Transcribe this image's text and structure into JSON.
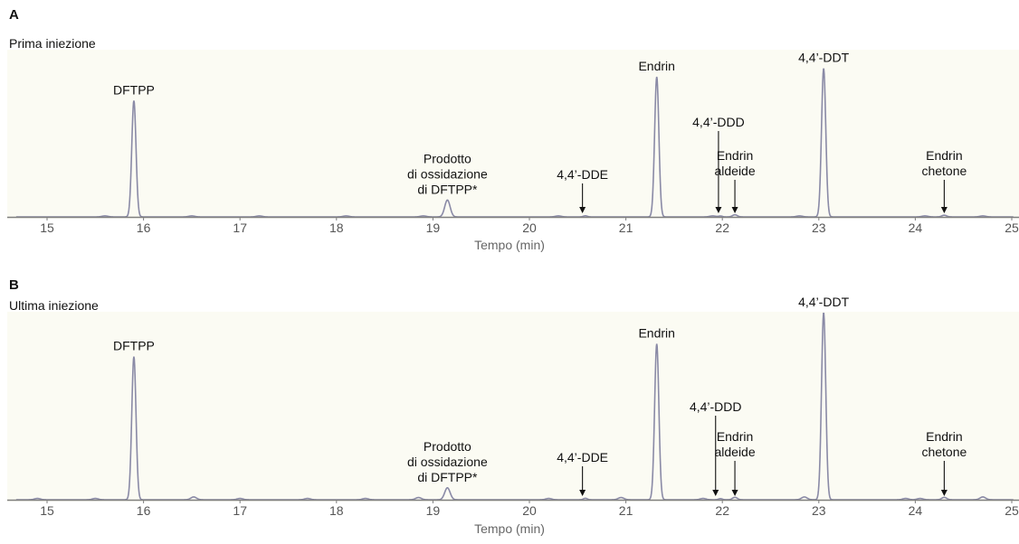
{
  "chart_data": [
    {
      "type": "line",
      "panel": "A",
      "subtitle": "Prima iniezione",
      "xlabel": "Tempo (min)",
      "xlim": [
        14.6,
        25.0
      ],
      "xticks": [
        15,
        16,
        17,
        18,
        19,
        20,
        21,
        22,
        23,
        24,
        25
      ],
      "ylim": [
        0,
        100
      ],
      "series": [
        {
          "peaks": [
            {
              "t": 15.9,
              "h": 83,
              "w": 0.022
            },
            {
              "t": 19.15,
              "h": 12,
              "w": 0.028
            },
            {
              "t": 20.58,
              "h": 0.8,
              "w": 0.02
            },
            {
              "t": 21.32,
              "h": 100,
              "w": 0.022
            },
            {
              "t": 21.98,
              "h": 0.6,
              "w": 0.02
            },
            {
              "t": 22.13,
              "h": 1.5,
              "w": 0.025
            },
            {
              "t": 23.05,
              "h": 106,
              "w": 0.022
            },
            {
              "t": 24.3,
              "h": 1.2,
              "w": 0.025
            }
          ],
          "noise": [
            15.6,
            16.5,
            17.2,
            18.1,
            18.9,
            20.3,
            21.9,
            22.8,
            24.1,
            24.7
          ]
        }
      ],
      "annotations": [
        {
          "lines": [
            "DFTPP"
          ],
          "t": 15.9,
          "arrow": false
        },
        {
          "lines": [
            "Prodotto",
            "di ossidazione",
            "di DFTPP*"
          ],
          "t": 19.15,
          "arrow": false
        },
        {
          "lines": [
            "4,4’-DDE"
          ],
          "t": 20.55,
          "arrow": true
        },
        {
          "lines": [
            "Endrin"
          ],
          "t": 21.32,
          "arrow": false
        },
        {
          "lines": [
            "4,4’-DDD"
          ],
          "t": 21.96,
          "arrow": true
        },
        {
          "lines": [
            "Endrin",
            "aldeide"
          ],
          "t": 22.13,
          "arrow": true
        },
        {
          "lines": [
            "4,4’-DDT"
          ],
          "t": 23.05,
          "arrow": false
        },
        {
          "lines": [
            "Endrin",
            "chetone"
          ],
          "t": 24.3,
          "arrow": true
        }
      ]
    },
    {
      "type": "line",
      "panel": "B",
      "subtitle": "Ultima iniezione",
      "xlabel": "Tempo (min)",
      "xlim": [
        14.6,
        25.0
      ],
      "xticks": [
        15,
        16,
        17,
        18,
        19,
        20,
        21,
        22,
        23,
        24,
        25
      ],
      "ylim": [
        0,
        100
      ],
      "series": [
        {
          "peaks": [
            {
              "t": 15.9,
              "h": 78,
              "w": 0.022
            },
            {
              "t": 16.52,
              "h": 1.5,
              "w": 0.03
            },
            {
              "t": 18.85,
              "h": 1.2,
              "w": 0.03
            },
            {
              "t": 19.15,
              "h": 6.5,
              "w": 0.028
            },
            {
              "t": 20.58,
              "h": 0.8,
              "w": 0.02
            },
            {
              "t": 20.95,
              "h": 1.2,
              "w": 0.03
            },
            {
              "t": 21.32,
              "h": 85,
              "w": 0.022
            },
            {
              "t": 21.98,
              "h": 0.6,
              "w": 0.02
            },
            {
              "t": 22.13,
              "h": 1.3,
              "w": 0.025
            },
            {
              "t": 22.85,
              "h": 1.5,
              "w": 0.03
            },
            {
              "t": 23.05,
              "h": 102,
              "w": 0.022
            },
            {
              "t": 24.3,
              "h": 1.3,
              "w": 0.025
            },
            {
              "t": 24.7,
              "h": 1.5,
              "w": 0.03
            }
          ],
          "noise": [
            14.9,
            15.5,
            17.0,
            17.7,
            18.3,
            20.2,
            21.8,
            23.9,
            24.05
          ]
        }
      ],
      "annotations": [
        {
          "lines": [
            "DFTPP"
          ],
          "t": 15.9,
          "arrow": false
        },
        {
          "lines": [
            "Prodotto",
            "di ossidazione",
            "di DFTPP*"
          ],
          "t": 19.15,
          "arrow": false
        },
        {
          "lines": [
            "4,4’-DDE"
          ],
          "t": 20.55,
          "arrow": true
        },
        {
          "lines": [
            "Endrin"
          ],
          "t": 21.32,
          "arrow": false
        },
        {
          "lines": [
            "4,4’-DDD"
          ],
          "t": 21.93,
          "arrow": true
        },
        {
          "lines": [
            "Endrin",
            "aldeide"
          ],
          "t": 22.13,
          "arrow": true
        },
        {
          "lines": [
            "4,4’-DDT"
          ],
          "t": 23.05,
          "arrow": false
        },
        {
          "lines": [
            "Endrin",
            "chetone"
          ],
          "t": 24.3,
          "arrow": true
        }
      ]
    }
  ],
  "colors": {
    "plot_bg": "#fbfbf3",
    "trace": "#8a8aa6",
    "baseline": "#7f7f7f",
    "text": "#111111",
    "tick_text": "#555555"
  }
}
